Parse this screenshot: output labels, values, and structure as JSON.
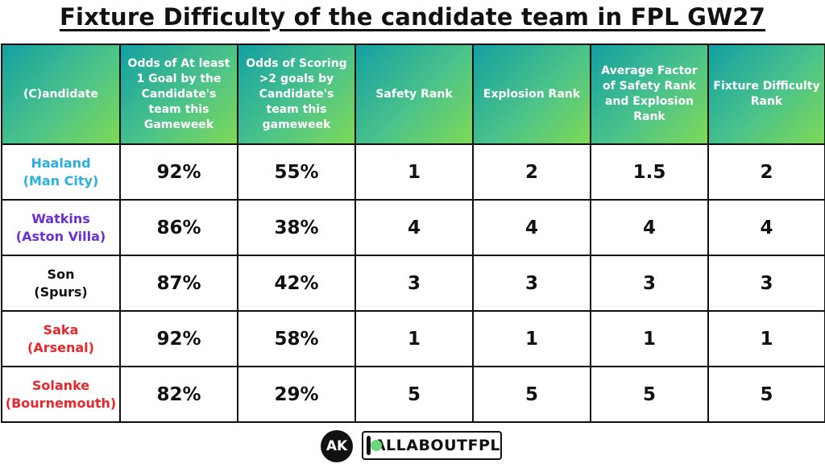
{
  "title": "Fixture Difficulty of the candidate team in FPL GW27",
  "colors": {
    "header_gradient_start": "#13a0a2",
    "header_gradient_end": "#7ed957",
    "highlight_green": "#1db56a",
    "man_city": "#2ab0e0",
    "aston_villa": "#6b2fd6",
    "spurs": "#111111",
    "arsenal": "#e8262b",
    "bournemouth": "#e8262b"
  },
  "headers": [
    "(C)andidate",
    "Odds of At least 1 Goal by the Candidate's team this Gameweek",
    "Odds of Scoring >2 goals by Candidate's team this gameweek",
    "Safety Rank",
    "Explosion Rank",
    "Average Factor of Safety Rank and Explosion Rank",
    "Fixture Difficulty Rank"
  ],
  "rows": [
    {
      "name": "Haaland",
      "team": "(Man City)",
      "team_color": "#2ab0e0",
      "cells": [
        {
          "value": "92%",
          "green": true
        },
        {
          "value": "55%",
          "green": false
        },
        {
          "value": "1",
          "green": true
        },
        {
          "value": "2",
          "green": false
        },
        {
          "value": "1.5",
          "green": false
        },
        {
          "value": "2",
          "green": false
        }
      ]
    },
    {
      "name": "Watkins",
      "team": "(Aston Villa)",
      "team_color": "#6b2fd6",
      "cells": [
        {
          "value": "86%",
          "green": false
        },
        {
          "value": "38%",
          "green": false
        },
        {
          "value": "4",
          "green": false
        },
        {
          "value": "4",
          "green": false
        },
        {
          "value": "4",
          "green": false
        },
        {
          "value": "4",
          "green": false
        }
      ]
    },
    {
      "name": "Son",
      "team": "(Spurs)",
      "team_color": "#111111",
      "cells": [
        {
          "value": "87%",
          "green": false
        },
        {
          "value": "42%",
          "green": false
        },
        {
          "value": "3",
          "green": false
        },
        {
          "value": "3",
          "green": false
        },
        {
          "value": "3",
          "green": false
        },
        {
          "value": "3",
          "green": false
        }
      ]
    },
    {
      "name": "Saka",
      "team": "(Arsenal)",
      "team_color": "#e8262b",
      "cells": [
        {
          "value": "92%",
          "green": true
        },
        {
          "value": "58%",
          "green": true
        },
        {
          "value": "1",
          "green": true
        },
        {
          "value": "1",
          "green": true
        },
        {
          "value": "1",
          "green": true
        },
        {
          "value": "1",
          "green": true
        }
      ]
    },
    {
      "name": "Solanke",
      "team": "(Bournemouth)",
      "team_color": "#e8262b",
      "cells": [
        {
          "value": "82%",
          "green": false
        },
        {
          "value": "29%",
          "green": false
        },
        {
          "value": "5",
          "green": false
        },
        {
          "value": "5",
          "green": false
        },
        {
          "value": "5",
          "green": false
        },
        {
          "value": "5",
          "green": false
        }
      ]
    }
  ],
  "footer": {
    "logo_text": "AK",
    "brand_text": "ALLABOUTFPL"
  }
}
